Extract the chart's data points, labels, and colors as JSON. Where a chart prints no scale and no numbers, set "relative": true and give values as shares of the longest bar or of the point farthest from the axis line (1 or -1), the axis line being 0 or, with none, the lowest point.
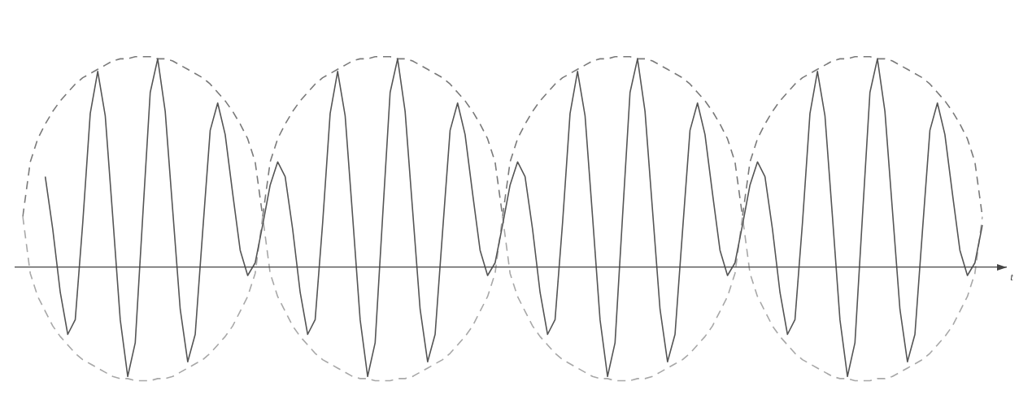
{
  "chart_data": {
    "type": "line",
    "relative": true,
    "xlabel": "t",
    "legend": false,
    "marker": "none",
    "categories": [
      null,
      null,
      null,
      null,
      null,
      null,
      null,
      null,
      null,
      null,
      null,
      null,
      null,
      null,
      null,
      null,
      null,
      null,
      null,
      null,
      null,
      null,
      null,
      null,
      null,
      null,
      null,
      null,
      null,
      null,
      null,
      null,
      null,
      null,
      null,
      null,
      null,
      null,
      null,
      null,
      null,
      null,
      null,
      null,
      null,
      null,
      null,
      null,
      null,
      null,
      null,
      null,
      null,
      null,
      null,
      null,
      null,
      null,
      null,
      null,
      null,
      null,
      null,
      null,
      null,
      null,
      null,
      null,
      null,
      null,
      null,
      null,
      null,
      null,
      null,
      null,
      null,
      null,
      null,
      null,
      null,
      null,
      null,
      null,
      null,
      null,
      null,
      null,
      null,
      null,
      null,
      null,
      null,
      null,
      null,
      null,
      null,
      null,
      null,
      null,
      null,
      null,
      null,
      null,
      null,
      null,
      null,
      null,
      null,
      null,
      null,
      null,
      null,
      null,
      null,
      null,
      null,
      null,
      null,
      null,
      null,
      null,
      null,
      null,
      null,
      null,
      null,
      null,
      null
    ],
    "series": [
      {
        "color": "#555555",
        "line_style": "solid",
        "values": [
          null,
          null,
          null,
          0.43,
          0.18,
          -0.12,
          -0.32,
          -0.25,
          0.21,
          0.73,
          0.93,
          0.72,
          0.24,
          -0.25,
          -0.52,
          -0.36,
          0.24,
          0.83,
          0.99,
          0.74,
          0.27,
          -0.2,
          -0.45,
          -0.32,
          0.17,
          0.65,
          0.78,
          0.63,
          0.35,
          0.08,
          -0.04,
          0.02,
          0.2,
          0.39,
          0.5,
          0.43,
          0.18,
          -0.12,
          -0.32,
          -0.25,
          0.21,
          0.73,
          0.93,
          0.72,
          0.24,
          -0.25,
          -0.52,
          -0.36,
          0.24,
          0.83,
          0.99,
          0.74,
          0.27,
          -0.2,
          -0.45,
          -0.32,
          0.17,
          0.65,
          0.78,
          0.63,
          0.35,
          0.08,
          -0.04,
          0.02,
          0.2,
          0.39,
          0.5,
          0.43,
          0.18,
          -0.12,
          -0.32,
          -0.25,
          0.21,
          0.73,
          0.93,
          0.72,
          0.24,
          -0.25,
          -0.52,
          -0.36,
          0.24,
          0.83,
          0.99,
          0.74,
          0.27,
          -0.2,
          -0.45,
          -0.32,
          0.17,
          0.65,
          0.78,
          0.63,
          0.35,
          0.08,
          -0.04,
          0.02,
          0.2,
          0.39,
          0.5,
          0.43,
          0.18,
          -0.12,
          -0.32,
          -0.25,
          0.21,
          0.73,
          0.93,
          0.72,
          0.24,
          -0.25,
          -0.52,
          -0.36,
          0.24,
          0.83,
          0.99,
          0.74,
          0.27,
          -0.2,
          -0.45,
          -0.32,
          0.17,
          0.65,
          0.78,
          0.63,
          0.35,
          0.08,
          -0.04,
          0.02,
          0.2
        ]
      },
      {
        "color": "#7a7a7a",
        "line_style": "dashed",
        "values": [
          0.24,
          0.5,
          0.61,
          0.68,
          0.74,
          0.79,
          0.83,
          0.87,
          0.9,
          0.92,
          0.94,
          0.96,
          0.98,
          0.99,
          0.99,
          1.0,
          1.0,
          1.0,
          0.99,
          0.99,
          0.98,
          0.96,
          0.94,
          0.92,
          0.9,
          0.87,
          0.83,
          0.79,
          0.74,
          0.68,
          0.61,
          0.5,
          0.24,
          0.5,
          0.61,
          0.68,
          0.74,
          0.79,
          0.83,
          0.87,
          0.9,
          0.92,
          0.94,
          0.96,
          0.98,
          0.99,
          0.99,
          1.0,
          1.0,
          1.0,
          0.99,
          0.99,
          0.98,
          0.96,
          0.94,
          0.92,
          0.9,
          0.87,
          0.83,
          0.79,
          0.74,
          0.68,
          0.61,
          0.5,
          0.24,
          0.5,
          0.61,
          0.68,
          0.74,
          0.79,
          0.83,
          0.87,
          0.9,
          0.92,
          0.94,
          0.96,
          0.98,
          0.99,
          0.99,
          1.0,
          1.0,
          1.0,
          0.99,
          0.99,
          0.98,
          0.96,
          0.94,
          0.92,
          0.9,
          0.87,
          0.83,
          0.79,
          0.74,
          0.68,
          0.61,
          0.5,
          0.24,
          0.5,
          0.61,
          0.68,
          0.74,
          0.79,
          0.83,
          0.87,
          0.9,
          0.92,
          0.94,
          0.96,
          0.98,
          0.99,
          0.99,
          1.0,
          1.0,
          1.0,
          0.99,
          0.99,
          0.98,
          0.96,
          0.94,
          0.92,
          0.9,
          0.87,
          0.83,
          0.79,
          0.74,
          0.68,
          0.61,
          0.5,
          0.24
        ]
      },
      {
        "color": "#a8a8a8",
        "line_style": "dashed",
        "values": [
          0.24,
          -0.03,
          -0.14,
          -0.21,
          -0.28,
          -0.33,
          -0.37,
          -0.41,
          -0.44,
          -0.46,
          -0.48,
          -0.5,
          -0.52,
          -0.53,
          -0.53,
          -0.54,
          -0.54,
          -0.54,
          -0.53,
          -0.53,
          -0.52,
          -0.5,
          -0.48,
          -0.46,
          -0.44,
          -0.41,
          -0.37,
          -0.33,
          -0.28,
          -0.21,
          -0.14,
          -0.03,
          0.24,
          -0.03,
          -0.14,
          -0.21,
          -0.28,
          -0.33,
          -0.37,
          -0.41,
          -0.44,
          -0.46,
          -0.48,
          -0.5,
          -0.52,
          -0.53,
          -0.53,
          -0.54,
          -0.54,
          -0.54,
          -0.53,
          -0.53,
          -0.52,
          -0.5,
          -0.48,
          -0.46,
          -0.44,
          -0.41,
          -0.37,
          -0.33,
          -0.28,
          -0.21,
          -0.14,
          -0.03,
          0.24,
          -0.03,
          -0.14,
          -0.21,
          -0.28,
          -0.33,
          -0.37,
          -0.41,
          -0.44,
          -0.46,
          -0.48,
          -0.5,
          -0.52,
          -0.53,
          -0.53,
          -0.54,
          -0.54,
          -0.54,
          -0.53,
          -0.53,
          -0.52,
          -0.5,
          -0.48,
          -0.46,
          -0.44,
          -0.41,
          -0.37,
          -0.33,
          -0.28,
          -0.21,
          -0.14,
          -0.03,
          0.24,
          -0.03,
          -0.14,
          -0.21,
          -0.28,
          -0.33,
          -0.37,
          -0.41,
          -0.44,
          -0.46,
          -0.48,
          -0.5,
          -0.52,
          -0.53,
          -0.53,
          -0.54,
          -0.54,
          -0.54,
          -0.53,
          -0.53,
          -0.52,
          -0.5,
          -0.48,
          -0.46,
          -0.44,
          -0.41,
          -0.37,
          -0.33,
          -0.28,
          -0.21,
          -0.14,
          -0.03,
          0.24
        ]
      }
    ]
  }
}
